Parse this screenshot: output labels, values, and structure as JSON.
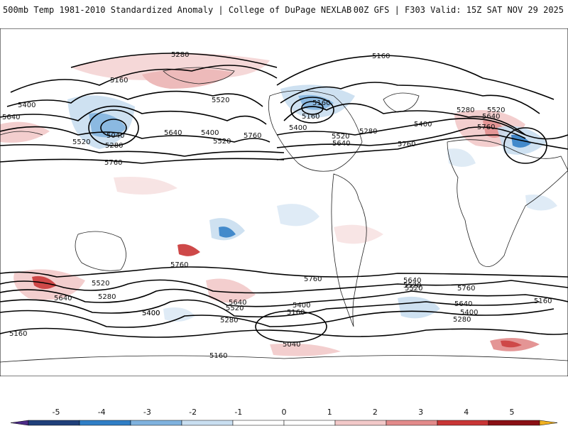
{
  "header": {
    "title_left": "500mb Temp 1981-2010 Standardized Anomaly | College of DuPage NEXLAB",
    "title_right": "00Z GFS | F303 Valid: 15Z SAT NOV 29 2025"
  },
  "colorbar": {
    "labels": [
      "-5",
      "-4",
      "-3",
      "-2",
      "-1",
      "0",
      "1",
      "2",
      "3",
      "4",
      "5"
    ],
    "colors": [
      "#4b2a86",
      "#1f3f7a",
      "#2f7ec6",
      "#7fb2de",
      "#c9def0",
      "#ffffff",
      "#ffffff",
      "#f2c9c9",
      "#e28a8a",
      "#c93535",
      "#8a0f14",
      "#f0b020"
    ]
  },
  "contours": {
    "labels": [
      "5280",
      "5160",
      "5520",
      "5160",
      "5640",
      "5400",
      "5520",
      "5040",
      "5280",
      "5640",
      "5400",
      "5520",
      "5760",
      "5760",
      "5160",
      "5400",
      "5160",
      "5520",
      "5280",
      "5640",
      "5400",
      "5760",
      "5280",
      "5640",
      "5520",
      "5760",
      "5520",
      "5760",
      "5640",
      "5520",
      "5280",
      "5640",
      "5400",
      "5280",
      "5760",
      "5640",
      "5520",
      "5400",
      "5160",
      "5400",
      "5040",
      "5160",
      "5640",
      "5520",
      "5760",
      "5280",
      "5400",
      "5160",
      "5160"
    ]
  }
}
